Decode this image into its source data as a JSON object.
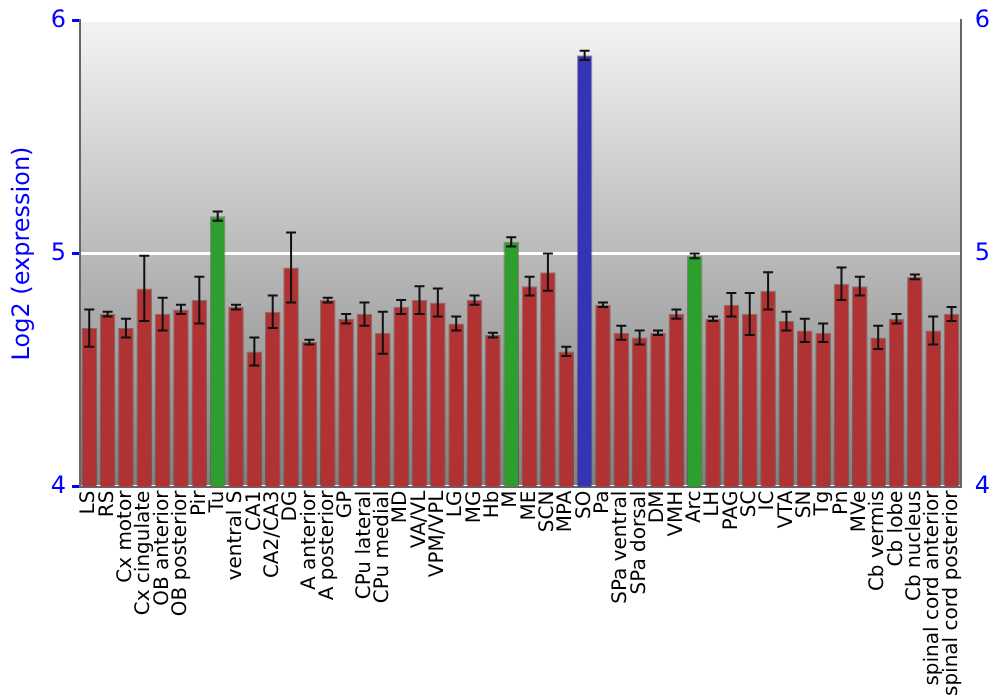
{
  "chart_data": {
    "type": "bar",
    "ylabel": "Log2 (expression)",
    "categories": [
      "LS",
      "RS",
      "Cx motor",
      "Cx cingulate",
      "OB anterior",
      "OB posterior",
      "Pir",
      "Tu",
      "ventral S",
      "CA1",
      "CA2/CA3",
      "DG",
      "A anterior",
      "A posterior",
      "GP",
      "CPu lateral",
      "CPu medial",
      "MD",
      "VA/VL",
      "VPM/VPL",
      "LG",
      "MG",
      "Hb",
      "M",
      "ME",
      "SCN",
      "MPA",
      "SO",
      "Pa",
      "SPa ventral",
      "SPa dorsal",
      "DM",
      "VMH",
      "Arc",
      "LH",
      "PAG",
      "SC",
      "IC",
      "VTA",
      "SN",
      "Tg",
      "Pn",
      "MVe",
      "Cb vermis",
      "Cb lobe",
      "Cb nucleus",
      "spinal cord anterior",
      "spinal cord posterior"
    ],
    "values": [
      4.68,
      4.74,
      4.68,
      4.85,
      4.74,
      4.76,
      4.8,
      5.16,
      4.77,
      4.58,
      4.75,
      4.94,
      4.62,
      4.8,
      4.72,
      4.74,
      4.66,
      4.77,
      4.8,
      4.79,
      4.7,
      4.8,
      4.65,
      5.05,
      4.86,
      4.92,
      4.58,
      5.85,
      4.78,
      4.66,
      4.64,
      4.66,
      4.74,
      4.99,
      4.72,
      4.78,
      4.74,
      4.84,
      4.71,
      4.67,
      4.66,
      4.87,
      4.86,
      4.64,
      4.72,
      4.9,
      4.67,
      4.74
    ],
    "errors": [
      0.08,
      0.01,
      0.04,
      0.14,
      0.07,
      0.02,
      0.1,
      0.02,
      0.01,
      0.06,
      0.07,
      0.15,
      0.01,
      0.01,
      0.02,
      0.05,
      0.09,
      0.03,
      0.06,
      0.06,
      0.03,
      0.02,
      0.01,
      0.02,
      0.04,
      0.08,
      0.02,
      0.02,
      0.01,
      0.03,
      0.03,
      0.01,
      0.02,
      0.01,
      0.01,
      0.05,
      0.09,
      0.08,
      0.04,
      0.05,
      0.04,
      0.07,
      0.04,
      0.05,
      0.02,
      0.01,
      0.06,
      0.03
    ],
    "colors": [
      "#b03232",
      "#b03232",
      "#b03232",
      "#b03232",
      "#b03232",
      "#b03232",
      "#b03232",
      "#2e9e2e",
      "#b03232",
      "#b03232",
      "#b03232",
      "#b03232",
      "#b03232",
      "#b03232",
      "#b03232",
      "#b03232",
      "#b03232",
      "#b03232",
      "#b03232",
      "#b03232",
      "#b03232",
      "#b03232",
      "#b03232",
      "#2e9e2e",
      "#b03232",
      "#b03232",
      "#b03232",
      "#3434b4",
      "#b03232",
      "#b03232",
      "#b03232",
      "#b03232",
      "#b03232",
      "#2e9e2e",
      "#b03232",
      "#b03232",
      "#b03232",
      "#b03232",
      "#b03232",
      "#b03232",
      "#b03232",
      "#b03232",
      "#b03232",
      "#b03232",
      "#b03232",
      "#b03232",
      "#b03232",
      "#b03232"
    ],
    "ylim": [
      4,
      6
    ],
    "yticks": [
      4,
      5,
      6
    ],
    "y2lim": [
      4,
      6
    ],
    "y2ticks": [
      4,
      5,
      6
    ],
    "grid": "y",
    "legend": false
  }
}
